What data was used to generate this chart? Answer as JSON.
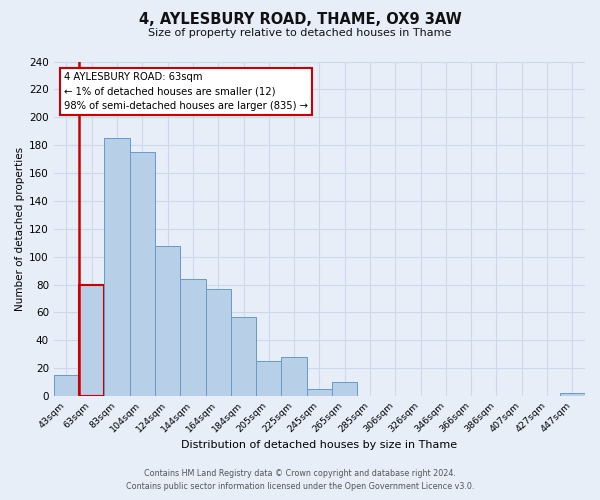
{
  "title": "4, AYLESBURY ROAD, THAME, OX9 3AW",
  "subtitle": "Size of property relative to detached houses in Thame",
  "xlabel": "Distribution of detached houses by size in Thame",
  "ylabel": "Number of detached properties",
  "bin_labels": [
    "43sqm",
    "63sqm",
    "83sqm",
    "104sqm",
    "124sqm",
    "144sqm",
    "164sqm",
    "184sqm",
    "205sqm",
    "225sqm",
    "245sqm",
    "265sqm",
    "285sqm",
    "306sqm",
    "326sqm",
    "346sqm",
    "366sqm",
    "386sqm",
    "407sqm",
    "427sqm",
    "447sqm"
  ],
  "bar_heights": [
    15,
    80,
    185,
    175,
    108,
    84,
    77,
    57,
    25,
    28,
    5,
    10,
    0,
    0,
    0,
    0,
    0,
    0,
    0,
    0,
    2
  ],
  "highlight_bin_index": 1,
  "highlight_color": "#cc0000",
  "bar_color": "#b8cfe8",
  "bar_edge_color": "#6699cc",
  "annotation_line1": "4 AYLESBURY ROAD: 63sqm",
  "annotation_line2": "← 1% of detached houses are smaller (12)",
  "annotation_line3": "98% of semi-detached houses are larger (835) →",
  "annotation_box_facecolor": "#ffffff",
  "annotation_box_edgecolor": "#cc0000",
  "ylim": [
    0,
    240
  ],
  "yticks": [
    0,
    20,
    40,
    60,
    80,
    100,
    120,
    140,
    160,
    180,
    200,
    220,
    240
  ],
  "grid_color": "#cdd8ea",
  "background_color": "#e8eef8",
  "footer_line1": "Contains HM Land Registry data © Crown copyright and database right 2024.",
  "footer_line2": "Contains public sector information licensed under the Open Government Licence v3.0."
}
